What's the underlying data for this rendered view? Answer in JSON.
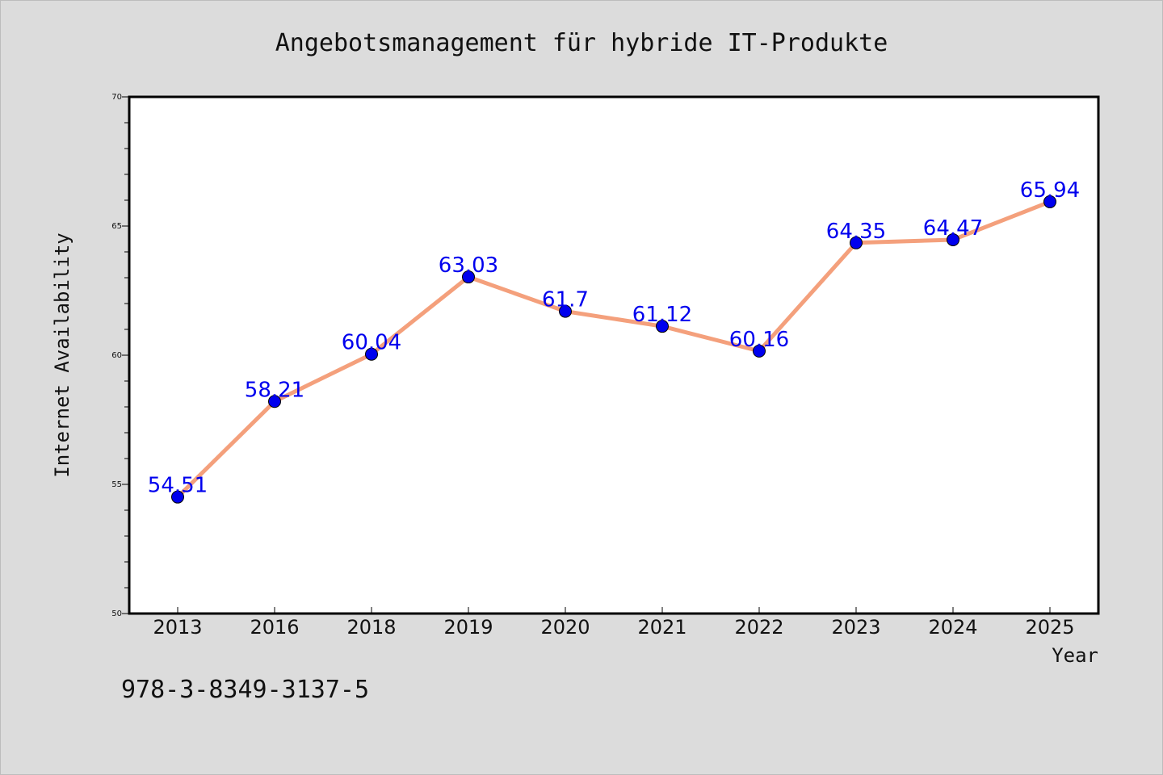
{
  "chart_data": {
    "type": "line",
    "title": "Angebotsmanagement für hybride IT-Produkte",
    "xlabel": "Year",
    "ylabel": "Internet Availability",
    "categories": [
      "2013",
      "2016",
      "2018",
      "2019",
      "2020",
      "2021",
      "2022",
      "2023",
      "2024",
      "2025"
    ],
    "values": [
      54.51,
      58.21,
      60.04,
      63.03,
      61.7,
      61.12,
      60.16,
      64.35,
      64.47,
      65.94
    ],
    "data_labels": [
      "54.51",
      "58.21",
      "60.04",
      "63.03",
      "61.7",
      "61.12",
      "60.16",
      "64.35",
      "64.47",
      "65.94"
    ],
    "ylim": [
      50,
      70
    ],
    "yticks": [
      "50",
      "55",
      "60",
      "65",
      "70"
    ],
    "grid": false,
    "line_color": "#f4a07c",
    "marker_color": "#0000ee",
    "label_color": "#0000ee",
    "plot_background": "#ffffff",
    "page_background": "#dcdcdc"
  },
  "footnote": "978-3-8349-3137-5"
}
